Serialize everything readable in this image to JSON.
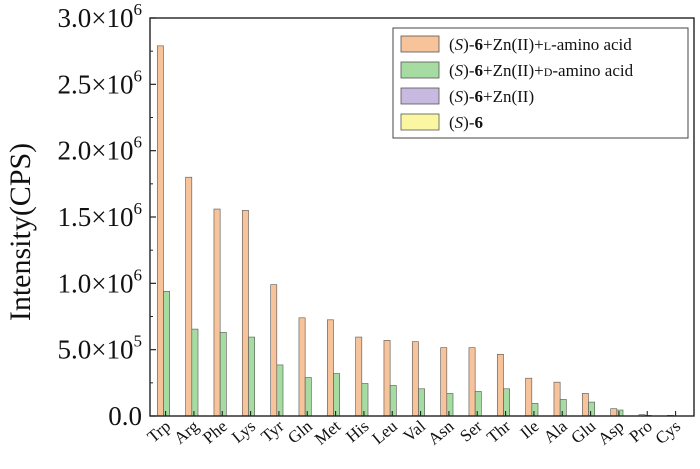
{
  "chart_data": {
    "type": "bar",
    "ylabel": "Intensity(CPS)",
    "xlabel": "",
    "ylim": [
      0,
      3000000
    ],
    "yticks": [
      {
        "value": 0,
        "mantissa": "0.0",
        "exp": ""
      },
      {
        "value": 500000,
        "mantissa": "5.0×10",
        "exp": "5"
      },
      {
        "value": 1000000,
        "mantissa": "1.0×10",
        "exp": "6"
      },
      {
        "value": 1500000,
        "mantissa": "1.5×10",
        "exp": "6"
      },
      {
        "value": 2000000,
        "mantissa": "2.0×10",
        "exp": "6"
      },
      {
        "value": 2500000,
        "mantissa": "2.5×10",
        "exp": "6"
      },
      {
        "value": 3000000,
        "mantissa": "3.0×10",
        "exp": "6"
      }
    ],
    "categories": [
      "Trp",
      "Arg",
      "Phe",
      "Lys",
      "Tyr",
      "Gln",
      "Met",
      "His",
      "Leu",
      "Val",
      "Asn",
      "Ser",
      "Thr",
      "Ile",
      "Ala",
      "Glu",
      "Asp",
      "Pro",
      "Cys"
    ],
    "series": [
      {
        "name": "(S)-6+Zn(II)+L-amino acid",
        "legend_parts": [
          "(",
          "S",
          ")-",
          "6",
          "+Zn(II)+",
          "L",
          "-amino acid"
        ],
        "color": "#f6c39a",
        "values": [
          2790000,
          1800000,
          1560000,
          1550000,
          990000,
          740000,
          725000,
          595000,
          570000,
          560000,
          515000,
          515000,
          465000,
          285000,
          255000,
          170000,
          55000,
          10000,
          5000
        ]
      },
      {
        "name": "(S)-6+Zn(II)+D-amino acid",
        "legend_parts": [
          "(",
          "S",
          ")-",
          "6",
          "+Zn(II)+",
          "D",
          "-amino acid"
        ],
        "color": "#a6dca2",
        "values": [
          940000,
          655000,
          630000,
          595000,
          385000,
          290000,
          320000,
          245000,
          230000,
          205000,
          170000,
          185000,
          205000,
          95000,
          125000,
          105000,
          45000,
          5000,
          3000
        ]
      },
      {
        "name": "(S)-6+Zn(II)",
        "legend_parts": [
          "(",
          "S",
          ")-",
          "6",
          "+Zn(II)"
        ],
        "color": "#c8b9e0",
        "values": [
          0,
          0,
          0,
          0,
          0,
          0,
          0,
          0,
          0,
          0,
          0,
          0,
          0,
          0,
          0,
          0,
          0,
          0,
          0
        ]
      },
      {
        "name": "(S)-6",
        "legend_parts": [
          "(",
          "S",
          ")-",
          "6"
        ],
        "color": "#fbf6a2",
        "values": [
          0,
          0,
          0,
          0,
          0,
          0,
          0,
          0,
          0,
          0,
          0,
          0,
          0,
          0,
          0,
          0,
          0,
          0,
          0
        ]
      }
    ],
    "legend_position": "top-right"
  }
}
